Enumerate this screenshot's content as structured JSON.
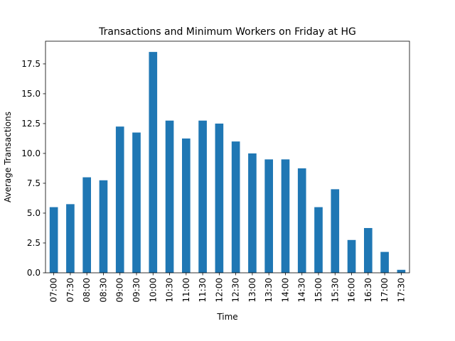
{
  "chart_data": {
    "type": "bar",
    "title": "Transactions and Minimum Workers on Friday at HG",
    "xlabel": "Time",
    "ylabel": "Average Transactions",
    "ylim": [
      0,
      19.4
    ],
    "yticks": [
      0.0,
      2.5,
      5.0,
      7.5,
      10.0,
      12.5,
      15.0,
      17.5
    ],
    "ytick_labels": [
      "0.0",
      "2.5",
      "5.0",
      "7.5",
      "10.0",
      "12.5",
      "15.0",
      "17.5"
    ],
    "categories": [
      "07:00",
      "07:30",
      "08:00",
      "08:30",
      "09:00",
      "09:30",
      "10:00",
      "10:30",
      "11:00",
      "11:30",
      "12:00",
      "12:30",
      "13:00",
      "13:30",
      "14:00",
      "14:30",
      "15:00",
      "15:30",
      "16:00",
      "16:30",
      "17:00",
      "17:30"
    ],
    "values": [
      5.5,
      5.75,
      8.0,
      7.75,
      12.25,
      11.75,
      18.5,
      12.75,
      11.25,
      12.75,
      12.5,
      11.0,
      10.0,
      9.5,
      9.5,
      8.75,
      5.5,
      7.0,
      2.75,
      3.75,
      1.75,
      0.25
    ],
    "grid": false,
    "legend": "none",
    "bar_color": "#1f77b4"
  }
}
